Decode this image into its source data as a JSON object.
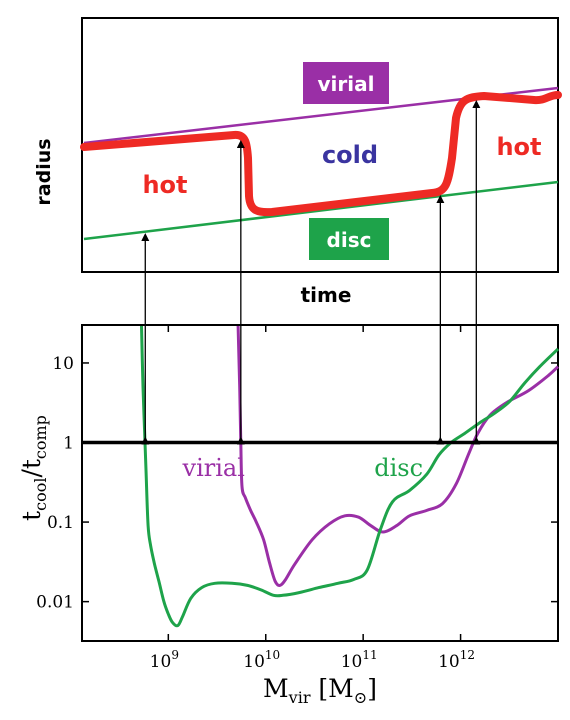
{
  "colors": {
    "hot": "#ee2a24",
    "cold": "#3a34a0",
    "virial": "#9a2fa6",
    "disc": "#1ea34a",
    "axis": "#000000",
    "badge_text": "#ffffff"
  },
  "top_panel": {
    "ylabel": "radius",
    "xlabel": "time",
    "labels": {
      "hot_left": "hot",
      "cold": "cold",
      "hot_right": "hot",
      "virial": "virial",
      "disc": "disc"
    }
  },
  "chart_data": {
    "type": "line",
    "xlabel": "M_vir [M_⊙]",
    "ylabel": "t_cool/t_comp",
    "xscale": "log",
    "yscale": "log",
    "xlim": [
      130000000.0,
      10000000000000.0
    ],
    "ylim": [
      0.0032,
      30
    ],
    "xticks": [
      {
        "value": 1000000000.0,
        "base": "10",
        "exp": "9"
      },
      {
        "value": 10000000000.0,
        "base": "10",
        "exp": "10"
      },
      {
        "value": 100000000000.0,
        "base": "10",
        "exp": "11"
      },
      {
        "value": 1000000000000.0,
        "base": "10",
        "exp": "12"
      }
    ],
    "yticks": [
      {
        "value": 10,
        "label": "10"
      },
      {
        "value": 1,
        "label": "1"
      },
      {
        "value": 0.1,
        "label": "0.1"
      },
      {
        "value": 0.01,
        "label": "0.01"
      }
    ],
    "reference_line": 1,
    "series": [
      {
        "name": "virial",
        "color": "#9a2fa6",
        "x": [
          5200000000.0,
          5400000000.0,
          5550000000.0,
          5700000000.0,
          6200000000.0,
          7000000000.0,
          8000000000.0,
          9500000000.0,
          11000000000.0,
          12500000000.0,
          14000000000.0,
          16000000000.0,
          20000000000.0,
          30000000000.0,
          45000000000.0,
          65000000000.0,
          90000000000.0,
          120000000000.0,
          160000000000.0,
          220000000000.0,
          300000000000.0,
          450000000000.0,
          650000000000.0,
          900000000000.0,
          1200000000000.0,
          1500000000000.0,
          2000000000000.0,
          3000000000000.0,
          5000000000000.0,
          8000000000000.0,
          10000000000000.0
        ],
        "y": [
          32,
          5,
          1.0,
          0.28,
          0.2,
          0.14,
          0.1,
          0.06,
          0.03,
          0.018,
          0.016,
          0.019,
          0.03,
          0.06,
          0.095,
          0.12,
          0.115,
          0.09,
          0.075,
          0.09,
          0.12,
          0.14,
          0.17,
          0.3,
          0.7,
          1.3,
          2.2,
          3.2,
          4.5,
          7,
          9
        ]
      },
      {
        "name": "disc",
        "color": "#1ea34a",
        "x": [
          530000000.0,
          550000000.0,
          570000000.0,
          590000000.0,
          620000000.0,
          660000000.0,
          720000000.0,
          800000000.0,
          900000000.0,
          1000000000.0,
          1100000000.0,
          1250000000.0,
          1400000000.0,
          1700000000.0,
          2200000000.0,
          3000000000.0,
          4500000000.0,
          6500000000.0,
          9000000000.0,
          12000000000.0,
          15000000000.0,
          22000000000.0,
          35000000000.0,
          55000000000.0,
          80000000000.0,
          110000000000.0,
          150000000000.0,
          200000000000.0,
          300000000000.0,
          450000000000.0,
          600000000000.0,
          800000000000.0,
          1100000000000.0,
          1600000000000.0,
          2200000000000.0,
          3200000000000.0,
          4500000000000.0,
          6500000000000.0,
          10000000000000.0
        ],
        "y": [
          32,
          5,
          1.5,
          0.45,
          0.09,
          0.05,
          0.03,
          0.018,
          0.01,
          0.007,
          0.0055,
          0.005,
          0.0065,
          0.011,
          0.015,
          0.017,
          0.017,
          0.016,
          0.014,
          0.012,
          0.012,
          0.013,
          0.015,
          0.017,
          0.019,
          0.025,
          0.08,
          0.18,
          0.25,
          0.4,
          0.7,
          1.0,
          1.3,
          1.8,
          2.3,
          3.3,
          5.5,
          9,
          15
        ]
      }
    ],
    "series_labels": [
      {
        "series": "virial",
        "text": "virial",
        "x": 1400000000.0,
        "y": 0.38
      },
      {
        "series": "disc",
        "text": "disc",
        "x": 130000000000.0,
        "y": 0.38
      }
    ]
  }
}
